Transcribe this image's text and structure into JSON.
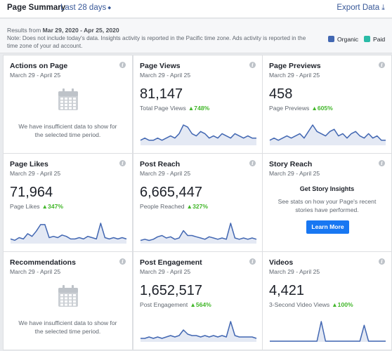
{
  "header": {
    "title": "Page Summary",
    "range_label": "Last 28 days",
    "range_caret": "⬥",
    "export_label": "Export Data",
    "export_icon": "⤓"
  },
  "notes": {
    "results_prefix": "Results from",
    "results_range": "Mar 29, 2020 - Apr 25, 2020",
    "note_text": "Note: Does not include today's data. Insights activity is reported in the Pacific time zone. Ads activity is reported in the time zone of your ad account."
  },
  "legend": [
    {
      "label": "Organic",
      "color": "#4267b2"
    },
    {
      "label": "Paid",
      "color": "#2abba7"
    }
  ],
  "colors": {
    "line": "#4267b2",
    "area": "#e4e9f4",
    "increase": "#42b72a",
    "button": "#1877f2"
  },
  "info_glyph": "i",
  "up_glyph": "▲",
  "cards": [
    {
      "title": "Actions on Page",
      "date": "March 29 - April 25",
      "empty": true,
      "empty_msg_1": "We have insufficient data to show for",
      "empty_msg_2": "the selected time period."
    },
    {
      "title": "Page Views",
      "date": "March 29 - April 25",
      "value": "81,147",
      "metric": "Total Page Views",
      "change": "748%",
      "trend": [
        2,
        3,
        2,
        2,
        3,
        2,
        3,
        4,
        3,
        5,
        9,
        8,
        5,
        4,
        6,
        5,
        3,
        4,
        3,
        5,
        4,
        3,
        5,
        4,
        3,
        4,
        3,
        3
      ]
    },
    {
      "title": "Page Previews",
      "date": "March 29 - April 25",
      "value": "458",
      "metric": "Page Previews",
      "change": "605%",
      "trend": [
        2,
        3,
        2,
        3,
        4,
        3,
        4,
        5,
        3,
        6,
        9,
        6,
        5,
        4,
        6,
        7,
        4,
        5,
        3,
        5,
        6,
        4,
        3,
        5,
        3,
        4,
        2,
        2
      ]
    },
    {
      "title": "Page Likes",
      "date": "March 29 - April 25",
      "value": "71,964",
      "metric": "Page Likes",
      "change": "347%",
      "trend": [
        3,
        2,
        4,
        3,
        7,
        5,
        9,
        14,
        14,
        4,
        5,
        4,
        6,
        5,
        3,
        3,
        4,
        3,
        5,
        4,
        3,
        15,
        4,
        3,
        4,
        3,
        4,
        3
      ]
    },
    {
      "title": "Post Reach",
      "date": "March 29 - April 25",
      "value": "6,665,447",
      "metric": "People Reached",
      "change": "327%",
      "trend": [
        2,
        3,
        2,
        3,
        5,
        6,
        4,
        5,
        3,
        4,
        10,
        6,
        6,
        5,
        4,
        3,
        5,
        4,
        3,
        4,
        3,
        16,
        4,
        3,
        4,
        3,
        4,
        3
      ]
    },
    {
      "title": "Story Reach",
      "date": "March 29 - April 25",
      "story": true,
      "insights_title": "Get Story Insights",
      "insights_text": "See stats on how your Page's recent stories have performed.",
      "button_label": "Learn More"
    },
    {
      "title": "Recommendations",
      "date": "March 29 - April 25",
      "empty": true,
      "empty_msg_1": "We have insufficient data to show for",
      "empty_msg_2": "the selected time period."
    },
    {
      "title": "Post Engagement",
      "date": "March 29 - April 25",
      "value": "1,652,517",
      "metric": "Post Engagement",
      "change": "564%",
      "trend": [
        2,
        2,
        3,
        2,
        3,
        2,
        3,
        4,
        3,
        4,
        8,
        5,
        4,
        4,
        3,
        4,
        3,
        4,
        3,
        4,
        3,
        14,
        4,
        3,
        3,
        3,
        3,
        2
      ]
    },
    {
      "title": "Videos",
      "date": "March 29 - April 25",
      "value": "4,421",
      "metric": "3-Second Video Views",
      "change": "100%",
      "trend": [
        0,
        0,
        0,
        0,
        0,
        0,
        0,
        0,
        0,
        0,
        0,
        0,
        16,
        0,
        0,
        0,
        0,
        0,
        0,
        0,
        0,
        0,
        13,
        0,
        0,
        0,
        0,
        0
      ]
    }
  ]
}
